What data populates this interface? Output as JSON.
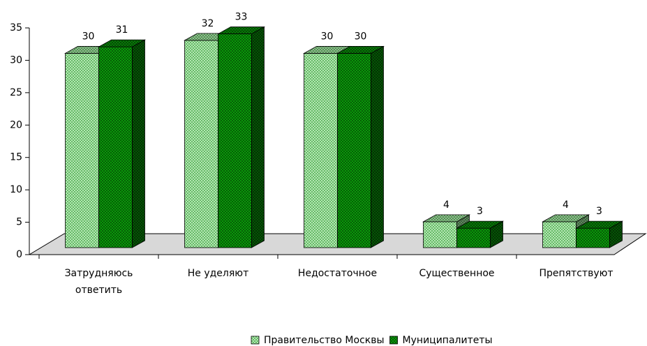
{
  "chart_data": {
    "type": "bar3d",
    "categories": [
      "Затрудняюсь ответить",
      "Не уделяют",
      "Недостаточное",
      "Существенное",
      "Препятствуют"
    ],
    "series": [
      {
        "name": "Правительство Москвы",
        "color": "#b5e6b5",
        "values": [
          30,
          32,
          30,
          4,
          4
        ]
      },
      {
        "name": "Муниципалитеты",
        "color": "#0a9a0a",
        "values": [
          31,
          33,
          30,
          3,
          3
        ]
      }
    ],
    "ylim": [
      0,
      35
    ],
    "yticks": [
      0,
      5,
      10,
      15,
      20,
      25,
      30,
      35
    ],
    "grid": false,
    "legend": "bottom"
  }
}
